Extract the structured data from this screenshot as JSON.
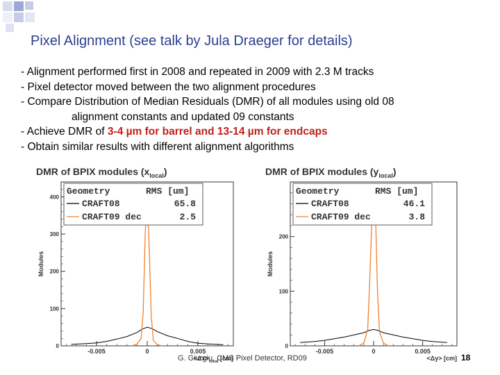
{
  "title": "Pixel Alignment (see talk by Jula Draeger for details)",
  "bullets": {
    "b1": "- Alignment performed first in 2008 and repeated in 2009 with 2.3 M tracks",
    "b2": "- Pixel detector moved between the two alignment procedures",
    "b3a": "- Compare Distribution of Median Residuals (DMR) of all modules using old 08",
    "b3b": "alignment constants and updated 09 constants",
    "b4_prefix": "- Achieve DMR of ",
    "b4_red": "3-4 µm for barrel and 13-14 µm for endcaps",
    "b5": "- Obtain similar results with different alignment algorithms"
  },
  "footer": "G. Giurgiu, CMS Pixel Detector, RD09",
  "page_number": "18",
  "colors": {
    "title": "#2a3f8f",
    "highlight": "#c0201c",
    "craft08": "#000000",
    "craft09": "#f08030"
  },
  "chart_data": [
    {
      "type": "line",
      "title": "DMR of BPIX modules (x",
      "title_sub": "local",
      "title_end": ")",
      "xlabel": "<Δx>",
      "xlabel_sub": "local",
      "xlabel_unit": " [cm]",
      "ylabel": "Modules",
      "x_ticks": [
        "-0.005",
        "0",
        "0.005"
      ],
      "y_ticks": [
        "0",
        "100",
        "200",
        "300",
        "400"
      ],
      "ylim": [
        0,
        440
      ],
      "xlim": [
        -0.0085,
        0.0085
      ],
      "legend": {
        "header_left": "Geometry",
        "header_right": "RMS  [um]",
        "rows": [
          {
            "name": "CRAFT08",
            "value": "65.8"
          },
          {
            "name": "CRAFT09 dec",
            "value": "2.5"
          }
        ]
      },
      "series": [
        {
          "name": "CRAFT08",
          "x": [
            -0.0075,
            -0.006,
            -0.005,
            -0.004,
            -0.003,
            -0.002,
            -0.001,
            -0.0005,
            0,
            0.0005,
            0.001,
            0.002,
            0.003,
            0.004,
            0.005,
            0.006,
            0.0075
          ],
          "values": [
            4,
            6,
            8,
            12,
            18,
            25,
            36,
            45,
            50,
            46,
            38,
            27,
            20,
            12,
            7,
            5,
            3
          ]
        },
        {
          "name": "CRAFT09 dec",
          "x": [
            -0.0015,
            -0.001,
            -0.0006,
            -0.0004,
            -0.0002,
            0,
            0.0002,
            0.0004,
            0.0006,
            0.001,
            0.0015
          ],
          "values": [
            0,
            5,
            20,
            90,
            300,
            410,
            260,
            80,
            15,
            3,
            0
          ]
        }
      ]
    },
    {
      "type": "line",
      "title": "DMR of BPIX modules (y",
      "title_sub": "local",
      "title_end": ")",
      "xlabel": "<Δy> [cm]",
      "xlabel_sub": "",
      "xlabel_unit": "",
      "ylabel": "Modules",
      "x_ticks": [
        "-0.005",
        "0",
        "0.005"
      ],
      "y_ticks": [
        "0",
        "100",
        "200"
      ],
      "ylim": [
        0,
        300
      ],
      "xlim": [
        -0.0085,
        0.0085
      ],
      "legend": {
        "header_left": "Geometry",
        "header_right": "RMS  [um]",
        "rows": [
          {
            "name": "CRAFT08",
            "value": "46.1"
          },
          {
            "name": "CRAFT09 dec",
            "value": "3.8"
          }
        ]
      },
      "series": [
        {
          "name": "CRAFT08",
          "x": [
            -0.0075,
            -0.006,
            -0.005,
            -0.004,
            -0.003,
            -0.002,
            -0.001,
            -0.0005,
            0,
            0.0005,
            0.001,
            0.002,
            0.003,
            0.004,
            0.005,
            0.006,
            0.0075
          ],
          "values": [
            6,
            8,
            10,
            13,
            16,
            20,
            24,
            28,
            30,
            28,
            24,
            20,
            16,
            13,
            10,
            8,
            6
          ]
        },
        {
          "name": "CRAFT09 dec",
          "x": [
            -0.0015,
            -0.001,
            -0.0006,
            -0.0004,
            -0.0002,
            0,
            0.0002,
            0.0004,
            0.0006,
            0.001,
            0.0015
          ],
          "values": [
            0,
            5,
            30,
            120,
            220,
            270,
            240,
            100,
            25,
            5,
            0
          ]
        }
      ]
    }
  ]
}
